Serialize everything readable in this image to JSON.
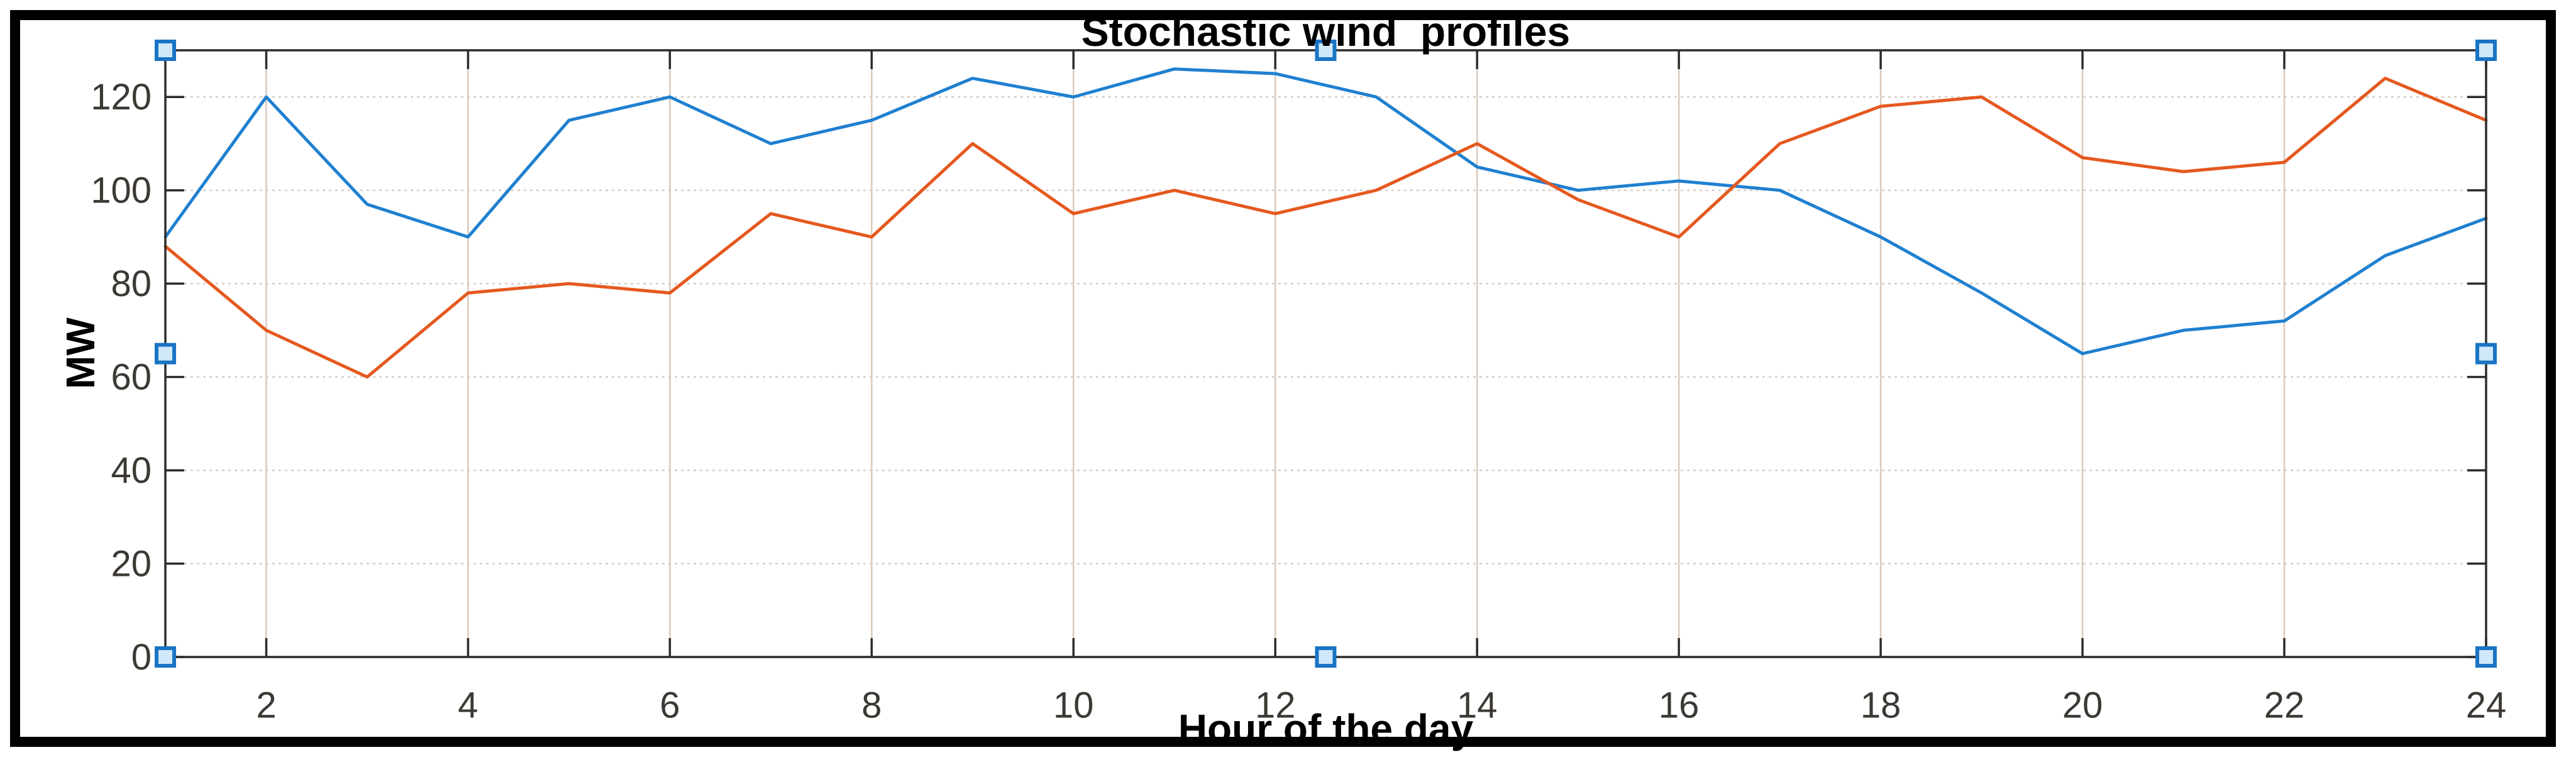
{
  "figure": {
    "title": "Stochastic wind  profiles",
    "xlabel": "Hour of the day",
    "ylabel": "MW",
    "background": "#ffffff",
    "border_color": "#000000",
    "state": "selected"
  },
  "colors": {
    "series1": "#1f80d0",
    "series2": "#e5581e",
    "grid_vertical": "#d9cabc",
    "grid_horizontal": "#d8ccc2",
    "axis_box": "#2e2b28",
    "tick_label": "#3c3833",
    "handle_fill": "#cfe8fa",
    "handle_border": "#1a74c4"
  },
  "axes": {
    "x_min": 1,
    "x_max": 24,
    "y_min": 0,
    "y_max": 130,
    "x_ticks": [
      2,
      4,
      6,
      8,
      10,
      12,
      14,
      16,
      18,
      20,
      22,
      24
    ],
    "y_ticks": [
      0,
      20,
      40,
      60,
      80,
      100,
      120
    ],
    "grid": true,
    "box": true,
    "tick_direction": "in"
  },
  "selection": {
    "handle_shape": "square",
    "handles": [
      {
        "id": "top-left",
        "hx": 0,
        "hy": 0
      },
      {
        "id": "top-center",
        "hx": 0.5,
        "hy": 0
      },
      {
        "id": "top-right",
        "hx": 1,
        "hy": 0
      },
      {
        "id": "mid-left",
        "hx": 0,
        "hy": 0.5
      },
      {
        "id": "mid-right",
        "hx": 1,
        "hy": 0.5
      },
      {
        "id": "bottom-left",
        "hx": 0,
        "hy": 1
      },
      {
        "id": "bottom-center",
        "hx": 0.5,
        "hy": 1
      },
      {
        "id": "bottom-right",
        "hx": 1,
        "hy": 1
      }
    ]
  },
  "chart_data": {
    "type": "line",
    "title": "Stochastic wind  profiles",
    "xlabel": "Hour of the day",
    "ylabel": "MW",
    "xlim": [
      1,
      24
    ],
    "ylim": [
      0,
      130
    ],
    "grid": true,
    "legend": "none",
    "x": [
      1,
      2,
      3,
      4,
      5,
      6,
      7,
      8,
      9,
      10,
      11,
      12,
      13,
      14,
      15,
      16,
      17,
      18,
      19,
      20,
      21,
      22,
      23,
      24
    ],
    "series": [
      {
        "id": "wind-profile-1",
        "color_key": "series1",
        "values": [
          90,
          120,
          97,
          90,
          115,
          120,
          110,
          115,
          124,
          120,
          126,
          125,
          120,
          105,
          100,
          102,
          100,
          90,
          78,
          65,
          70,
          72,
          86,
          94
        ]
      },
      {
        "id": "wind-profile-2",
        "color_key": "series2",
        "values": [
          88,
          70,
          60,
          78,
          80,
          78,
          95,
          90,
          110,
          95,
          100,
          95,
          100,
          110,
          98,
          90,
          110,
          118,
          120,
          107,
          104,
          106,
          124,
          115
        ]
      }
    ]
  }
}
